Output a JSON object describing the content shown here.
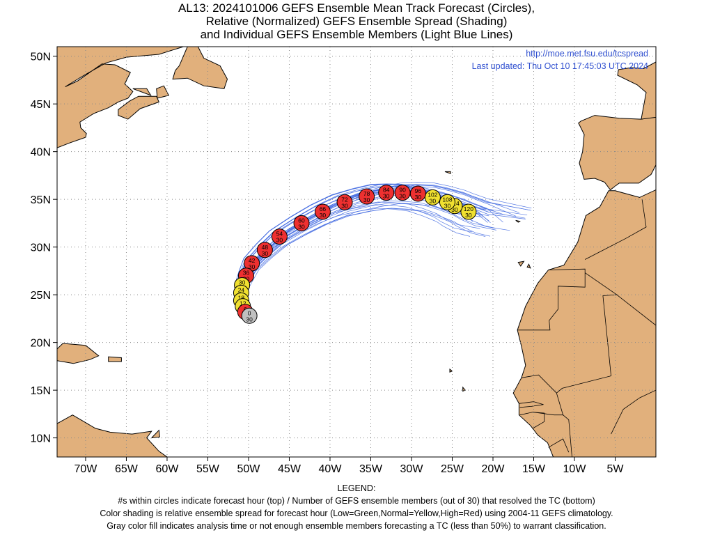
{
  "title_lines": [
    "AL13: 2024101006 GEFS Ensemble Mean Track Forecast (Circles),",
    "Relative (Normalized) GEFS Ensemble Spread (Shading)",
    "and Individual GEFS Ensemble Members (Light Blue Lines)"
  ],
  "source": {
    "url": "http://moe.met.fsu.edu/tcspread",
    "updated": "Last updated: Thu Oct 10 17:45:03 UTC 2024"
  },
  "axes": {
    "lon_labels": [
      "70W",
      "65W",
      "60W",
      "55W",
      "50W",
      "45W",
      "40W",
      "35W",
      "30W",
      "25W",
      "20W",
      "15W",
      "10W",
      "5W"
    ],
    "lon_values": [
      -70,
      -65,
      -60,
      -55,
      -50,
      -45,
      -40,
      -35,
      -30,
      -25,
      -20,
      -15,
      -10,
      -5
    ],
    "lat_labels": [
      "50N",
      "45N",
      "40N",
      "35N",
      "30N",
      "25N",
      "20N",
      "15N",
      "10N"
    ],
    "lat_values": [
      50,
      45,
      40,
      35,
      30,
      25,
      20,
      15,
      10
    ],
    "lon_range": [
      -73.5,
      0
    ],
    "lat_range": [
      8,
      51
    ]
  },
  "colors": {
    "land": "#e1b07c",
    "coast": "#000000",
    "members": "#4169e1",
    "grid": "#888888",
    "high": "#ee3030",
    "normal": "#f0e030",
    "analysis": "#c0c0c0",
    "text_blue": "#3050d0"
  },
  "forecast_points": [
    {
      "hour": "0",
      "members": "30",
      "lat": 22.8,
      "lon": -49.9,
      "category": "analysis"
    },
    {
      "hour": "6",
      "members": "30",
      "lat": 23.2,
      "lon": -50.4,
      "category": "high"
    },
    {
      "hour": "12",
      "members": "30",
      "lat": 23.8,
      "lon": -50.7,
      "category": "normal"
    },
    {
      "hour": "18",
      "members": "30",
      "lat": 24.4,
      "lon": -50.9,
      "category": "normal"
    },
    {
      "hour": "24",
      "members": "30",
      "lat": 25.2,
      "lon": -50.9,
      "category": "normal"
    },
    {
      "hour": "30",
      "members": "30",
      "lat": 26.0,
      "lon": -50.8,
      "category": "normal"
    },
    {
      "hour": "36",
      "members": "30",
      "lat": 27.0,
      "lon": -50.3,
      "category": "high"
    },
    {
      "hour": "42",
      "members": "30",
      "lat": 28.3,
      "lon": -49.6,
      "category": "high"
    },
    {
      "hour": "48",
      "members": "30",
      "lat": 29.7,
      "lon": -48.0,
      "category": "high"
    },
    {
      "hour": "54",
      "members": "30",
      "lat": 31.1,
      "lon": -46.2,
      "category": "high"
    },
    {
      "hour": "60",
      "members": "30",
      "lat": 32.5,
      "lon": -43.5,
      "category": "high"
    },
    {
      "hour": "66",
      "members": "30",
      "lat": 33.7,
      "lon": -40.9,
      "category": "high"
    },
    {
      "hour": "72",
      "members": "30",
      "lat": 34.7,
      "lon": -38.2,
      "category": "high"
    },
    {
      "hour": "78",
      "members": "30",
      "lat": 35.3,
      "lon": -35.5,
      "category": "high"
    },
    {
      "hour": "84",
      "members": "30",
      "lat": 35.7,
      "lon": -33.1,
      "category": "high"
    },
    {
      "hour": "90",
      "members": "30",
      "lat": 35.7,
      "lon": -31.1,
      "category": "high"
    },
    {
      "hour": "96",
      "members": "30",
      "lat": 35.6,
      "lon": -29.2,
      "category": "high"
    },
    {
      "hour": "102",
      "members": "30",
      "lat": 35.2,
      "lon": -27.4,
      "category": "normal"
    },
    {
      "hour": "108",
      "members": "30",
      "lat": 34.7,
      "lon": -25.6,
      "category": "normal"
    },
    {
      "hour": "114",
      "members": "30",
      "lat": 34.3,
      "lon": -24.7,
      "category": "normal"
    },
    {
      "hour": "120",
      "members": "30",
      "lat": 33.7,
      "lon": -23.0,
      "category": "normal"
    }
  ],
  "legend": [
    "LEGEND:",
    "#s within circles indicate forecast hour (top) / Number of GEFS ensemble members (out of 30) that resolved the TC (bottom)",
    "Color shading is relative ensemble spread for forecast hour (Low=Green,Normal=Yellow,High=Red) using 2004-11 GEFS climatology.",
    "Gray color fill indicates analysis time or not enough ensemble members forecasting a TC (less than 50%) to warrant classification."
  ]
}
